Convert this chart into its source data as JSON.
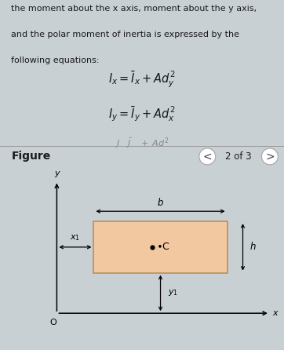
{
  "top_bg": "#c8d0d4",
  "bottom_bg": "#e8e4e0",
  "text_color": "#1a1a1a",
  "rect_facecolor": "#f2c8a0",
  "rect_edgecolor": "#b89060",
  "title_lines": [
    "the moment about the x axis, moment about the y axis,",
    "and the polar moment of inertia is expressed by the",
    "following equations:"
  ],
  "eq1": "$I_x = \\bar{I}_x + Ad_y^2$",
  "eq2": "$I_y = \\bar{I}_y + Ad_x^2$",
  "eq3_partial": "$J \\quad \\bar{J} \\quad + \\; Ad^2$",
  "figure_label": "Figure",
  "nav_text": "2 of 3",
  "C_label": "$\\bullet$C",
  "x_label": "x",
  "y_label": "y",
  "b_label": "b",
  "h_label": "h",
  "x1_label": "$x_1$",
  "y1_label": "$y_1$",
  "O_label": "O"
}
